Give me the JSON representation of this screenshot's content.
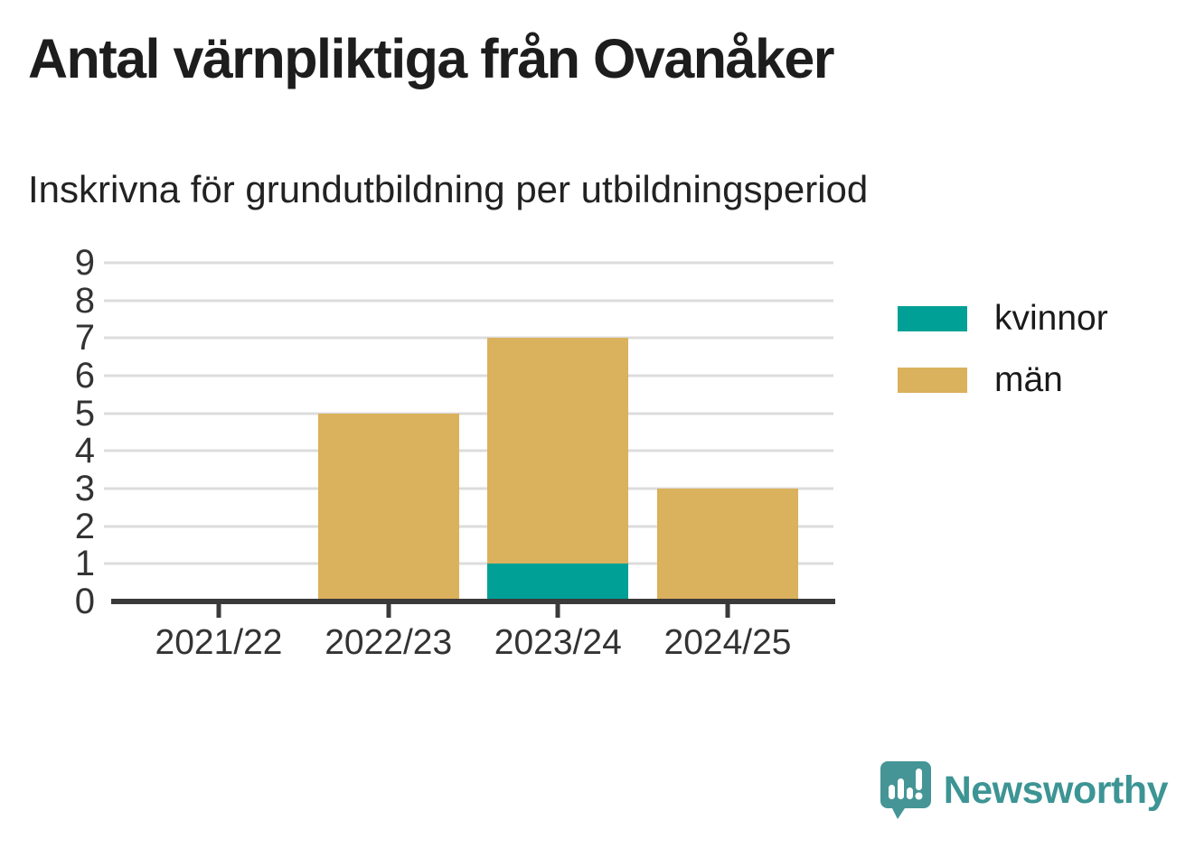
{
  "title": "Antal värnpliktiga från Ovanåker",
  "subtitle": "Inskrivna för grundutbildning per utbildningsperiod",
  "logo": {
    "text": "Newsworthy"
  },
  "colors": {
    "kvinnor": "#00a096",
    "man": "#dab15c",
    "axis": "#3a3a3a",
    "grid": "#dcdcdc",
    "logo_teal": "#3d9494"
  },
  "chart_data": {
    "type": "bar",
    "stacked": true,
    "categories": [
      "2021/22",
      "2022/23",
      "2023/24",
      "2024/25"
    ],
    "series": [
      {
        "name": "kvinnor",
        "color": "#00a096",
        "values": [
          0,
          0,
          1,
          0
        ]
      },
      {
        "name": "män",
        "color": "#dab15c",
        "values": [
          0,
          5,
          6,
          3
        ]
      }
    ],
    "totals": [
      0,
      5,
      7,
      3
    ],
    "title": "Antal värnpliktiga från Ovanåker",
    "subtitle": "Inskrivna för grundutbildning per utbildningsperiod",
    "xlabel": "",
    "ylabel": "",
    "ylim": [
      0,
      9
    ],
    "y_ticks": [
      0,
      1,
      2,
      3,
      4,
      5,
      6,
      7,
      8,
      9
    ],
    "grid": true,
    "legend_position": "right",
    "legend_entries": [
      "kvinnor",
      "män"
    ]
  }
}
